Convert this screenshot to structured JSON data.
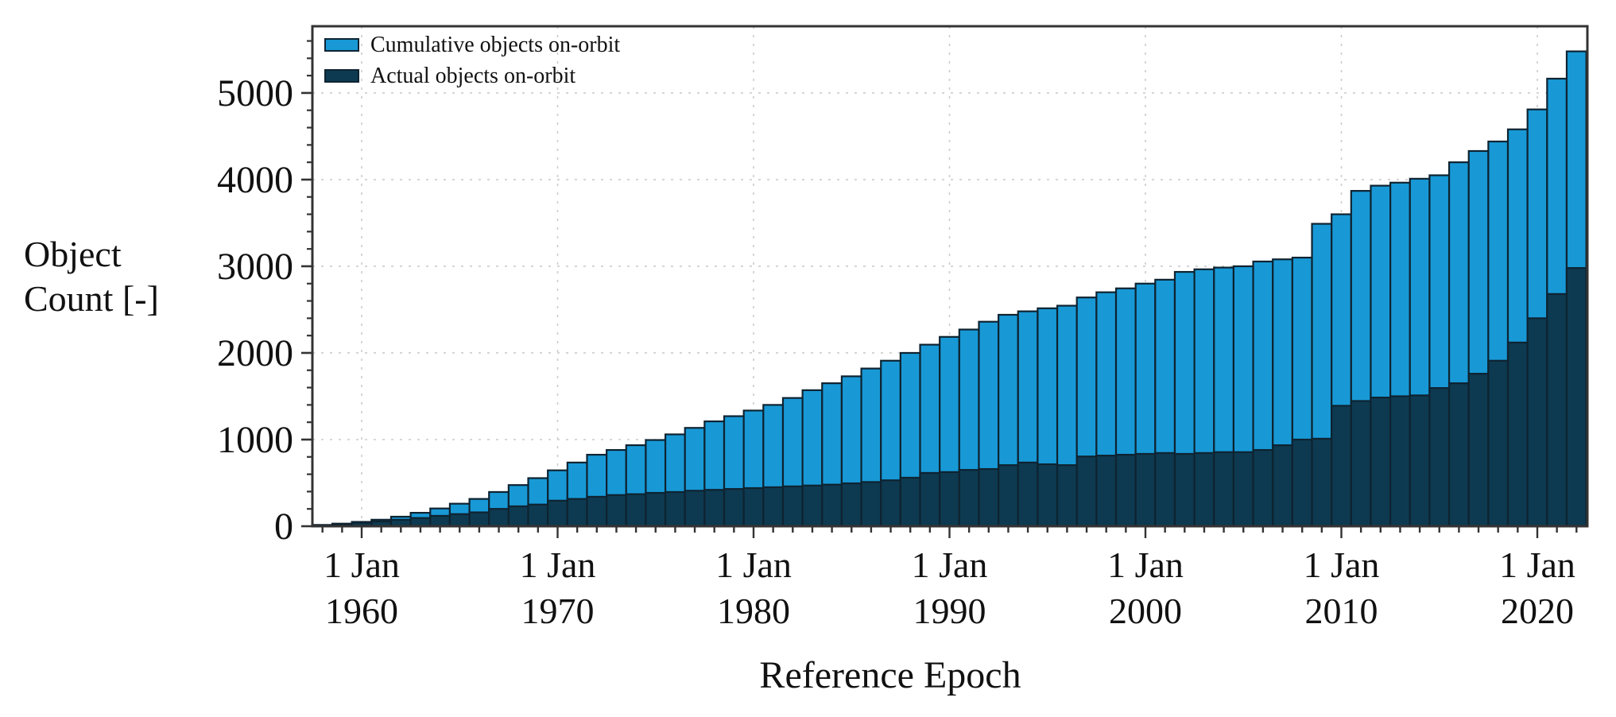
{
  "chart_data": {
    "type": "bar",
    "title": "",
    "xlabel": "Reference Epoch",
    "ylabel": "Object Count [-]",
    "ylabel_lines": [
      "Object",
      "Count [-]"
    ],
    "legend_position": "top-left-inside",
    "grid": "dashed-major",
    "background": "#ffffff",
    "frame_color": "#333333",
    "grid_color": "#cccccc",
    "ylim": [
      0,
      5770
    ],
    "y_ticks": [
      0,
      1000,
      2000,
      3000,
      4000,
      5000
    ],
    "y_minor_step": 200,
    "x_minor_step_years": 1,
    "x_major_ticks": [
      {
        "year": 1960,
        "line1": "1 Jan",
        "line2": "1960"
      },
      {
        "year": 1970,
        "line1": "1 Jan",
        "line2": "1970"
      },
      {
        "year": 1980,
        "line1": "1 Jan",
        "line2": "1980"
      },
      {
        "year": 1990,
        "line1": "1 Jan",
        "line2": "1990"
      },
      {
        "year": 2000,
        "line1": "1 Jan",
        "line2": "2000"
      },
      {
        "year": 2010,
        "line1": "1 Jan",
        "line2": "2010"
      },
      {
        "year": 2020,
        "line1": "1 Jan",
        "line2": "2020"
      }
    ],
    "x_start_year": 1957,
    "x_end_year": 2022,
    "bar_outline_color": "#0e2331",
    "series": [
      {
        "name": "Cumulative objects on-orbit",
        "color": "#1899d6",
        "values": [
          5,
          15,
          30,
          50,
          75,
          110,
          155,
          205,
          260,
          315,
          395,
          475,
          555,
          645,
          735,
          825,
          880,
          935,
          995,
          1060,
          1135,
          1210,
          1270,
          1335,
          1400,
          1480,
          1570,
          1650,
          1730,
          1820,
          1910,
          2000,
          2095,
          2185,
          2270,
          2360,
          2440,
          2480,
          2515,
          2545,
          2640,
          2700,
          2745,
          2800,
          2845,
          2935,
          2965,
          2985,
          3000,
          3055,
          3080,
          3100,
          3490,
          3600,
          3870,
          3930,
          3965,
          4010,
          4050,
          4200,
          4330,
          4440,
          4580,
          4810,
          5165,
          5480
        ]
      },
      {
        "name": "Actual objects on-orbit",
        "color": "#0d3a50",
        "values": [
          3,
          8,
          15,
          40,
          55,
          75,
          95,
          120,
          140,
          160,
          200,
          230,
          250,
          295,
          315,
          340,
          360,
          370,
          385,
          395,
          410,
          420,
          430,
          440,
          450,
          460,
          470,
          480,
          495,
          510,
          530,
          560,
          615,
          625,
          650,
          660,
          705,
          735,
          715,
          705,
          805,
          815,
          825,
          835,
          845,
          835,
          845,
          855,
          855,
          880,
          935,
          1000,
          1010,
          1390,
          1445,
          1485,
          1500,
          1510,
          1595,
          1650,
          1760,
          1910,
          2120,
          2400,
          2680,
          2980
        ]
      }
    ]
  }
}
